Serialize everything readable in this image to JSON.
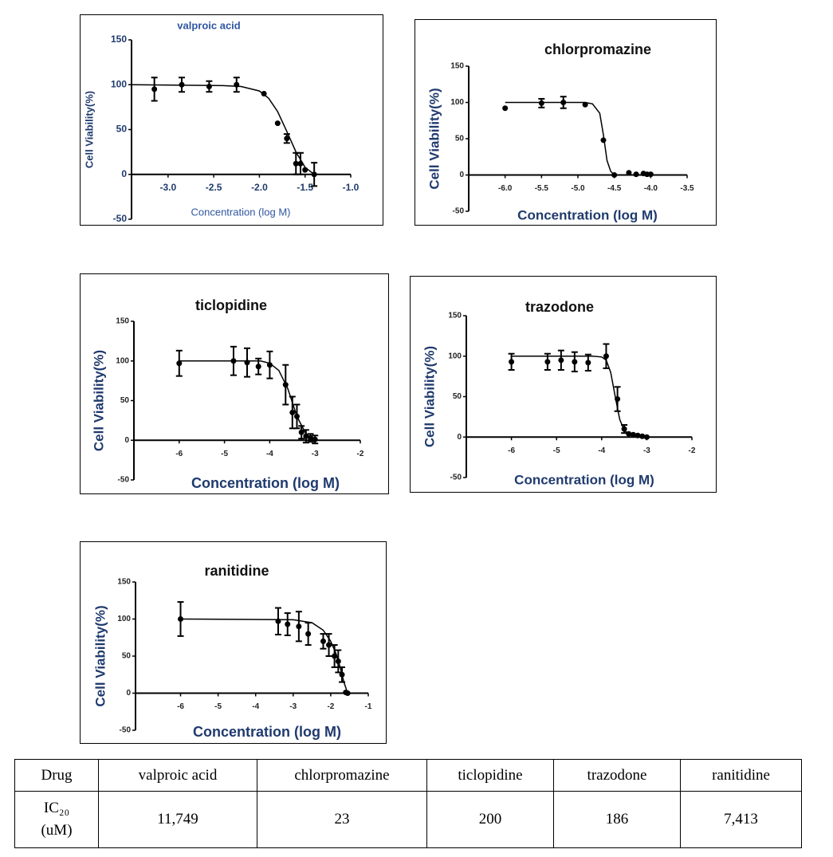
{
  "chart_data": [
    {
      "type": "scatter",
      "title": "valproic acid",
      "xlabel": "Concentration (log M)",
      "ylabel": "Cell Viability(%)",
      "xlim": [
        -3.4,
        -1.0
      ],
      "ylim": [
        -50,
        150
      ],
      "xticks": [
        {
          "value": -3,
          "label": "-3.0"
        },
        {
          "value": -2.5,
          "label": "-2.5"
        },
        {
          "value": -2,
          "label": "-2.0"
        },
        {
          "value": -1.5,
          "label": "-1.5"
        },
        {
          "value": -1,
          "label": "-1.0"
        }
      ],
      "yticks": [
        150,
        100,
        50,
        0,
        -50
      ],
      "series": [
        {
          "type": "scatter",
          "color": "#000000",
          "x": [
            -3.15,
            -2.85,
            -2.55,
            -2.25,
            -1.95,
            -1.8,
            -1.7,
            -1.6,
            -1.55,
            -1.5,
            -1.4
          ],
          "values": [
            95,
            100,
            98,
            100,
            90,
            57,
            40,
            12,
            12,
            5,
            0
          ],
          "errors": [
            13,
            8,
            6,
            8,
            0,
            0,
            5,
            12,
            12,
            0,
            13
          ]
        },
        {
          "type": "line",
          "color": "#000000",
          "x": [
            -3.4,
            -2.4,
            -2.2,
            -2.0,
            -1.9,
            -1.8,
            -1.7,
            -1.6,
            -1.5,
            -1.4
          ],
          "values": [
            100,
            99,
            98,
            93,
            85,
            70,
            48,
            25,
            8,
            0
          ]
        }
      ]
    },
    {
      "type": "scatter",
      "title": "chlorpromazine",
      "xlabel": "Concentration (log M)",
      "ylabel": "Cell Viability(%)",
      "xlim": [
        -6.5,
        -3.5
      ],
      "ylim": [
        -50,
        150
      ],
      "xticks": [
        {
          "value": -6,
          "label": "-6.0"
        },
        {
          "value": -5.5,
          "label": "-5.5"
        },
        {
          "value": -5,
          "label": "-5.0"
        },
        {
          "value": -4.5,
          "label": "-4.5"
        },
        {
          "value": -4,
          "label": "-4.0"
        },
        {
          "value": -3.5,
          "label": "-3.5"
        }
      ],
      "yticks": [
        150,
        100,
        50,
        0,
        -50
      ],
      "series": [
        {
          "type": "scatter",
          "color": "#000000",
          "x": [
            -6.0,
            -5.5,
            -5.2,
            -4.9,
            -4.65,
            -4.5,
            -4.3,
            -4.2,
            -4.1,
            -4.05,
            -4.0
          ],
          "values": [
            92,
            99,
            100,
            97,
            48,
            0,
            3,
            1,
            2,
            1,
            1
          ],
          "errors": [
            0,
            6,
            8,
            0,
            0,
            0,
            0,
            0,
            0,
            0,
            0
          ]
        },
        {
          "type": "line",
          "color": "#000000",
          "x": [
            -6.0,
            -4.9,
            -4.8,
            -4.7,
            -4.65,
            -4.6,
            -4.55,
            -4.5,
            -3.6
          ],
          "values": [
            100,
            100,
            98,
            85,
            55,
            20,
            5,
            0,
            0
          ]
        }
      ]
    },
    {
      "type": "scatter",
      "title": "ticlopidine",
      "xlabel": "Concentration (log M)",
      "ylabel": "Cell Viability(%)",
      "xlim": [
        -7,
        -2
      ],
      "ylim": [
        -50,
        150
      ],
      "xticks": [
        -6,
        -5,
        -4,
        -3,
        -2
      ],
      "yticks": [
        150,
        100,
        50,
        0,
        -50
      ],
      "series": [
        {
          "type": "scatter",
          "color": "#000000",
          "x": [
            -6,
            -4.8,
            -4.5,
            -4.25,
            -4.0,
            -3.65,
            -3.5,
            -3.4,
            -3.3,
            -3.2,
            -3.1,
            -3.0
          ],
          "values": [
            97,
            100,
            98,
            93,
            95,
            70,
            35,
            30,
            10,
            5,
            3,
            1
          ],
          "errors": [
            16,
            18,
            18,
            10,
            17,
            25,
            20,
            15,
            8,
            8,
            5,
            5
          ]
        },
        {
          "type": "line",
          "color": "#000000",
          "x": [
            -6,
            -4.2,
            -4.0,
            -3.8,
            -3.6,
            -3.4,
            -3.2,
            -3.0
          ],
          "values": [
            100,
            100,
            97,
            88,
            65,
            30,
            8,
            0
          ]
        }
      ]
    },
    {
      "type": "scatter",
      "title": "trazodone",
      "xlabel": "Concentration (log M)",
      "ylabel": "Cell Viability(%)",
      "xlim": [
        -7,
        -2
      ],
      "ylim": [
        -50,
        150
      ],
      "xticks": [
        -6,
        -5,
        -4,
        -3,
        -2
      ],
      "yticks": [
        150,
        100,
        50,
        0,
        -50
      ],
      "series": [
        {
          "type": "scatter",
          "color": "#000000",
          "x": [
            -6,
            -5.2,
            -4.9,
            -4.6,
            -4.3,
            -3.9,
            -3.65,
            -3.5,
            -3.4,
            -3.3,
            -3.2,
            -3.1,
            -3.0
          ],
          "values": [
            93,
            93,
            95,
            93,
            92,
            100,
            47,
            10,
            4,
            3,
            2,
            1,
            0
          ],
          "errors": [
            10,
            10,
            12,
            12,
            10,
            15,
            15,
            5,
            0,
            0,
            0,
            0,
            0
          ]
        },
        {
          "type": "line",
          "color": "#000000",
          "x": [
            -6,
            -4.2,
            -4.0,
            -3.9,
            -3.8,
            -3.7,
            -3.6,
            -3.5,
            -3.3,
            -3.0
          ],
          "values": [
            100,
            100,
            99,
            95,
            80,
            50,
            22,
            8,
            1,
            0
          ]
        }
      ]
    },
    {
      "type": "scatter",
      "title": "ranitidine",
      "xlabel": "Concentration (log M)",
      "ylabel": "Cell Viability(%)",
      "xlim": [
        -7.2,
        -1
      ],
      "ylim": [
        -50,
        150
      ],
      "xticks": [
        -6,
        -5,
        -4,
        -3,
        -2,
        -1
      ],
      "yticks": [
        150,
        100,
        50,
        0,
        -50
      ],
      "series": [
        {
          "type": "scatter",
          "color": "#000000",
          "x": [
            -6,
            -3.4,
            -3.15,
            -2.85,
            -2.6,
            -2.2,
            -2.05,
            -1.9,
            -1.8,
            -1.7,
            -1.6,
            -1.55
          ],
          "values": [
            100,
            97,
            93,
            90,
            80,
            70,
            65,
            50,
            43,
            25,
            1,
            0
          ],
          "errors": [
            23,
            18,
            15,
            20,
            15,
            10,
            15,
            15,
            15,
            10,
            0,
            0
          ]
        },
        {
          "type": "line",
          "color": "#000000",
          "x": [
            -6,
            -3.0,
            -2.5,
            -2.2,
            -2.0,
            -1.85,
            -1.75,
            -1.65,
            -1.55
          ],
          "values": [
            100,
            99,
            95,
            85,
            70,
            52,
            35,
            15,
            0
          ]
        }
      ]
    }
  ],
  "table": {
    "header": [
      "Drug",
      "valproic  acid",
      "chlorpromazine",
      "ticlopidine",
      "trazodone",
      "ranitidine"
    ],
    "rows": [
      [
        "IC₂₀ (uM)",
        "11,749",
        "23",
        "200",
        "186",
        "7,413"
      ]
    ]
  }
}
